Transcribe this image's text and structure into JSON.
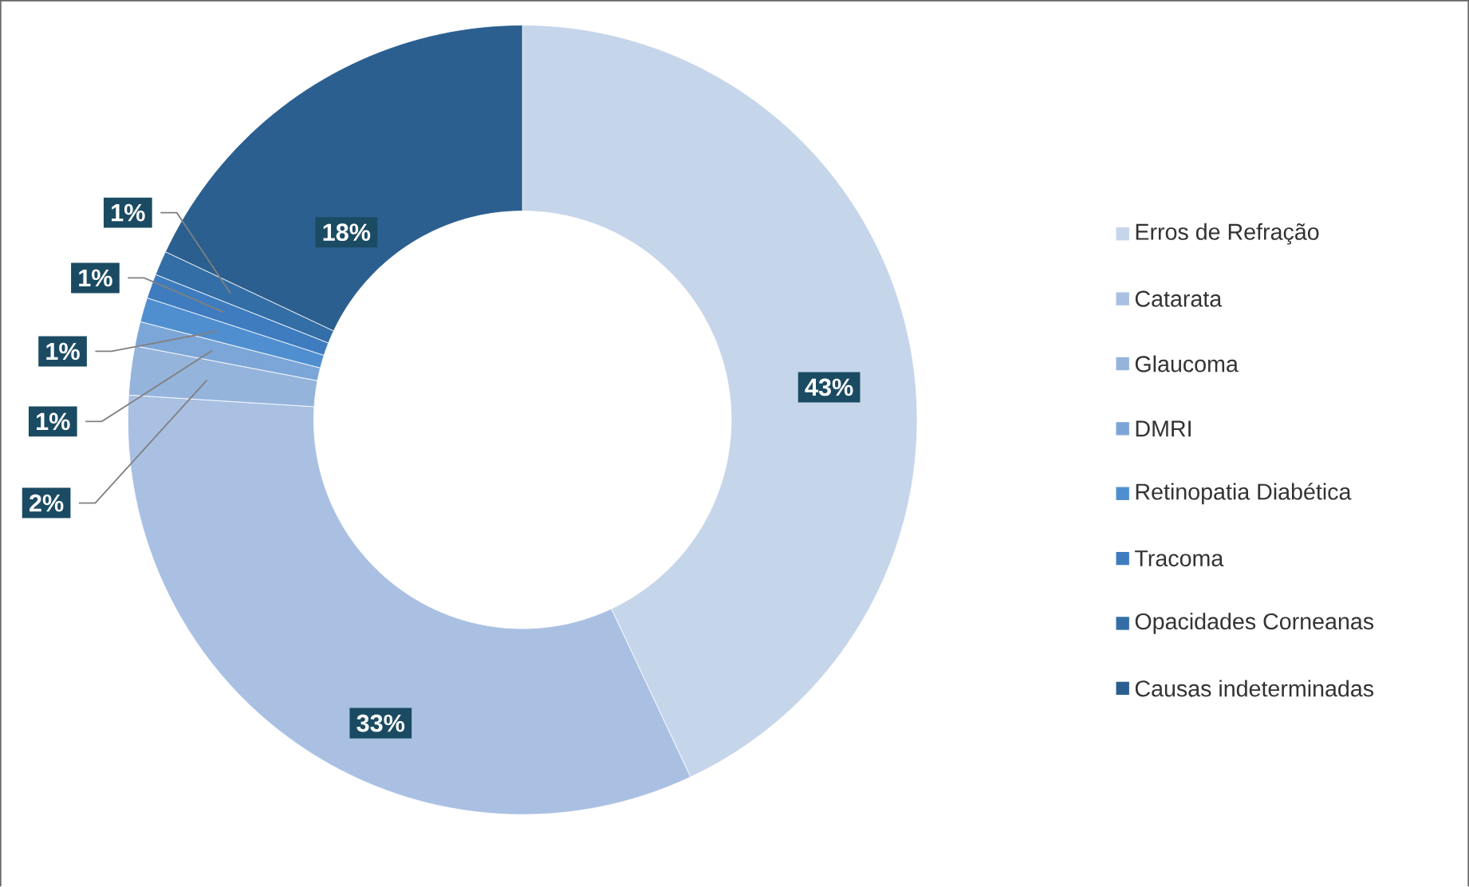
{
  "chart_data": {
    "type": "donut",
    "categories": [
      "Erros de Refração",
      "Catarata",
      "Glaucoma",
      "DMRI",
      "Retinopatia Diabética",
      "Tracoma",
      "Opacidades Corneanas",
      "Causas indeterminadas"
    ],
    "values": [
      43,
      33,
      2,
      1,
      1,
      1,
      1,
      18
    ],
    "colors": [
      "#c5d5ea",
      "#a9c0e3",
      "#95b4dc",
      "#7ca6d8",
      "#4f8fd0",
      "#3e7cbf",
      "#336ea6",
      "#2b5f8f"
    ],
    "value_labels": [
      "43%",
      "33%",
      "2%",
      "1%",
      "1%",
      "1%",
      "1%",
      "18%"
    ],
    "legend": "right"
  }
}
